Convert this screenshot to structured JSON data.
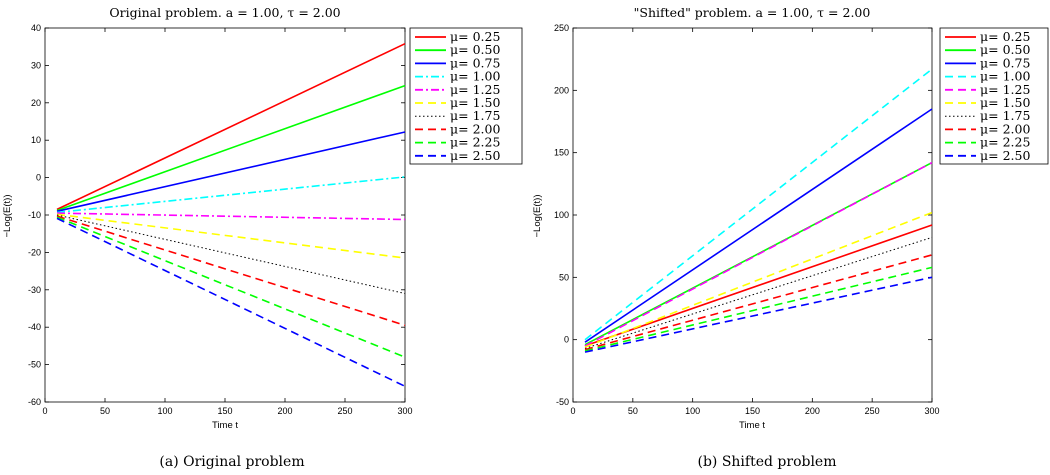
{
  "chart_data": [
    {
      "type": "line",
      "title": "Original problem. a = 1.00, τ = 2.00",
      "xlabel": "Time t",
      "ylabel": "−Log(E(t))",
      "caption": "(a)  Original problem",
      "xlim": [
        0,
        300
      ],
      "ylim": [
        -60,
        40
      ],
      "xticks": [
        0,
        50,
        100,
        150,
        200,
        250,
        300
      ],
      "yticks": [
        -60,
        -50,
        -40,
        -30,
        -20,
        -10,
        0,
        10,
        20,
        30,
        40
      ],
      "legend_position": "outside top-right",
      "x": [
        10,
        300
      ],
      "series": [
        {
          "name": "μ= 0.25",
          "values": [
            -8.5,
            35.8
          ],
          "color": "#ff0000",
          "style": "solid"
        },
        {
          "name": "μ= 0.50",
          "values": [
            -8.8,
            24.6
          ],
          "color": "#00ff00",
          "style": "solid"
        },
        {
          "name": "μ= 0.75",
          "values": [
            -9.0,
            12.2
          ],
          "color": "#0000ff",
          "style": "solid"
        },
        {
          "name": "μ= 1.00",
          "values": [
            -9.3,
            0.2
          ],
          "color": "#00ffff",
          "style": "dashdot"
        },
        {
          "name": "μ= 1.25",
          "values": [
            -9.5,
            -11.2
          ],
          "color": "#ff00ff",
          "style": "dashdot"
        },
        {
          "name": "μ= 1.50",
          "values": [
            -9.8,
            -21.5
          ],
          "color": "#ffff00",
          "style": "dashed"
        },
        {
          "name": "μ= 1.75",
          "values": [
            -10.0,
            -31.0
          ],
          "color": "#000000",
          "style": "dotted"
        },
        {
          "name": "μ= 2.00",
          "values": [
            -10.3,
            -39.5
          ],
          "color": "#ff0000",
          "style": "dashed"
        },
        {
          "name": "μ= 2.25",
          "values": [
            -10.6,
            -48.0
          ],
          "color": "#00ff00",
          "style": "dashed"
        },
        {
          "name": "μ= 2.50",
          "values": [
            -10.9,
            -55.8
          ],
          "color": "#0000ff",
          "style": "dashed"
        }
      ]
    },
    {
      "type": "line",
      "title": "\"Shifted\" problem. a = 1.00, τ = 2.00",
      "xlabel": "Time t",
      "ylabel": "−Log(E(t))",
      "caption": "(b)  Shifted problem",
      "xlim": [
        0,
        300
      ],
      "ylim": [
        -50,
        250
      ],
      "xticks": [
        0,
        50,
        100,
        150,
        200,
        250,
        300
      ],
      "yticks": [
        -50,
        0,
        50,
        100,
        150,
        200,
        250
      ],
      "legend_position": "outside top-right",
      "x": [
        10,
        300
      ],
      "series": [
        {
          "name": "μ= 0.25",
          "values": [
            -5,
            92
          ],
          "color": "#ff0000",
          "style": "solid"
        },
        {
          "name": "μ= 0.50",
          "values": [
            -4,
            142
          ],
          "color": "#00ff00",
          "style": "solid"
        },
        {
          "name": "μ= 0.75",
          "values": [
            -2,
            185
          ],
          "color": "#0000ff",
          "style": "solid"
        },
        {
          "name": "μ= 1.00",
          "values": [
            0,
            217
          ],
          "color": "#00ffff",
          "style": "dashed"
        },
        {
          "name": "μ= 1.25",
          "values": [
            -5,
            142
          ],
          "color": "#ff00ff",
          "style": "dashed"
        },
        {
          "name": "μ= 1.50",
          "values": [
            -6,
            102
          ],
          "color": "#ffff00",
          "style": "dashed"
        },
        {
          "name": "μ= 1.75",
          "values": [
            -7,
            82
          ],
          "color": "#000000",
          "style": "dotted"
        },
        {
          "name": "μ= 2.00",
          "values": [
            -8,
            68
          ],
          "color": "#ff0000",
          "style": "dashed"
        },
        {
          "name": "μ= 2.25",
          "values": [
            -9,
            58
          ],
          "color": "#00ff00",
          "style": "dashed"
        },
        {
          "name": "μ= 2.50",
          "values": [
            -10,
            50
          ],
          "color": "#0000ff",
          "style": "dashed"
        }
      ]
    }
  ]
}
